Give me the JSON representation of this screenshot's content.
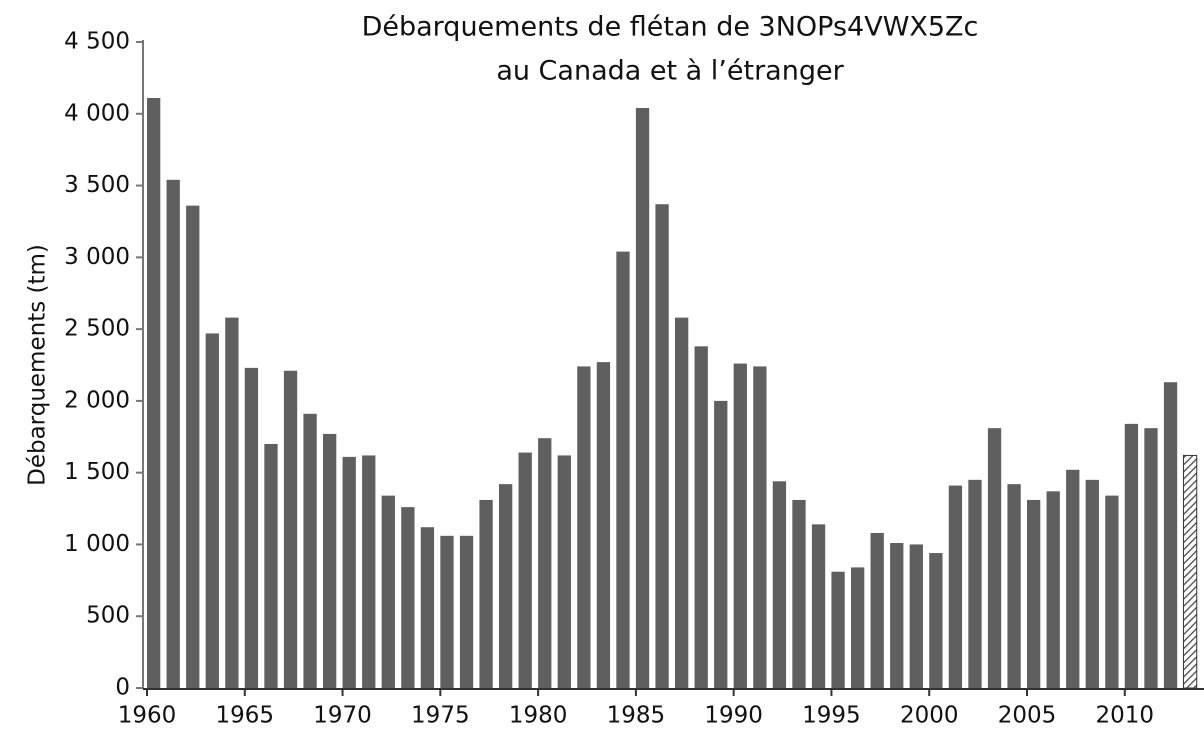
{
  "chart_data": {
    "type": "bar",
    "title": [
      "Débarquements de flétan de 3NOPs4VWX5Zc",
      "au Canada et à l’étranger"
    ],
    "y_label": "Débarquements (tm)",
    "x": [
      1960,
      1961,
      1962,
      1963,
      1964,
      1965,
      1966,
      1967,
      1968,
      1969,
      1970,
      1971,
      1972,
      1973,
      1974,
      1975,
      1976,
      1977,
      1978,
      1979,
      1980,
      1981,
      1982,
      1983,
      1984,
      1985,
      1986,
      1987,
      1988,
      1989,
      1990,
      1991,
      1992,
      1993,
      1994,
      1995,
      1996,
      1997,
      1998,
      1999,
      2000,
      2001,
      2002,
      2003,
      2004,
      2005,
      2006,
      2007,
      2008,
      2009,
      2010,
      2011,
      2012,
      2013
    ],
    "values": [
      4110,
      3540,
      3360,
      2470,
      2580,
      2230,
      1700,
      2210,
      1910,
      1770,
      1610,
      1620,
      1340,
      1260,
      1120,
      1060,
      1060,
      1310,
      1420,
      1640,
      1740,
      1620,
      2240,
      2270,
      3040,
      4040,
      3370,
      2580,
      2380,
      2000,
      2260,
      2240,
      1440,
      1310,
      1140,
      810,
      840,
      1080,
      1010,
      1000,
      940,
      1410,
      1450,
      1810,
      1420,
      1310,
      1370,
      1520,
      1450,
      1340,
      1840,
      1810,
      2130,
      1620
    ],
    "color": "#5f5f5f",
    "hatched": [
      2013
    ],
    "xlim": [
      1960,
      2014
    ],
    "xticks": [
      1960,
      1965,
      1970,
      1975,
      1980,
      1985,
      1990,
      1995,
      2000,
      2005,
      2010
    ],
    "ylim": [
      0,
      4500
    ],
    "yticks": [
      0,
      500,
      {
        "value": 1000,
        "label": "1 000"
      },
      {
        "value": 1500,
        "label": "1 500"
      },
      {
        "value": 2000,
        "label": "2 000"
      },
      {
        "value": 2500,
        "label": "2 500"
      },
      {
        "value": 3000,
        "label": "3 000"
      },
      {
        "value": 3500,
        "label": "3 500"
      },
      {
        "value": 4000,
        "label": "4 000"
      },
      {
        "value": 4500,
        "label": "4 500"
      }
    ],
    "grid": false
  }
}
